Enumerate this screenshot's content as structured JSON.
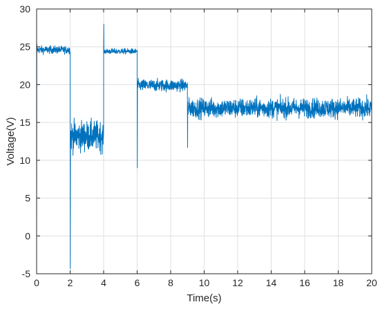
{
  "chart_data": {
    "type": "line",
    "title": "",
    "xlabel": "Time(s)",
    "ylabel": "Voltage(V)",
    "xlim": [
      0,
      20
    ],
    "ylim": [
      -5,
      30
    ],
    "xticks": [
      0,
      2,
      4,
      6,
      8,
      10,
      12,
      14,
      16,
      18,
      20
    ],
    "yticks": [
      -5,
      0,
      5,
      10,
      15,
      20,
      25,
      30
    ],
    "grid": true,
    "color": "#0072BD",
    "series": [
      {
        "segments": [
          {
            "t_start": 0.0,
            "t_end": 2.0,
            "mean": 24.6,
            "noise": 0.35,
            "spike": 25.4
          },
          {
            "t_start": 2.0,
            "t_end": 4.0,
            "mean": 13.2,
            "noise": 1.4,
            "spike": -4.3
          },
          {
            "t_start": 4.0,
            "t_end": 6.0,
            "mean": 24.4,
            "noise": 0.25,
            "spike": 28.0
          },
          {
            "t_start": 6.0,
            "t_end": 9.0,
            "mean": 19.9,
            "noise": 0.55,
            "spike": 9.0
          },
          {
            "t_start": 9.0,
            "t_end": 20.0,
            "mean": 16.9,
            "noise": 0.9,
            "spike": 11.7
          }
        ]
      }
    ]
  }
}
